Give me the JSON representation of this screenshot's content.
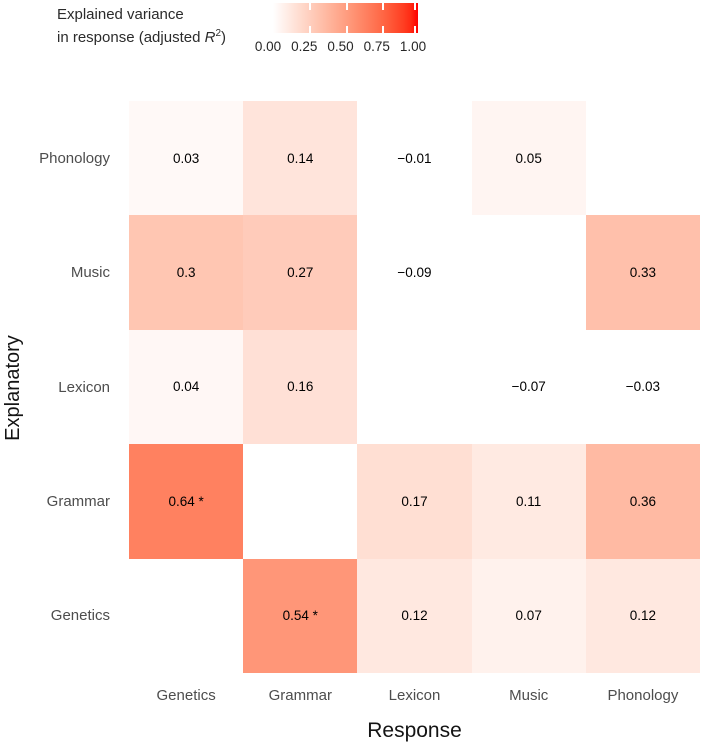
{
  "figure": {
    "background": "#ffffff"
  },
  "legend": {
    "title_line1": "Explained variance",
    "title_line2_prefix": "in response (adjusted ",
    "title_r": "R",
    "title_sup": "2",
    "title_close": ")",
    "tick_labels": [
      "0.00",
      "0.25",
      "0.50",
      "0.75",
      "1.00"
    ]
  },
  "axes": {
    "x_title": "Response",
    "y_title": "Explanatory"
  },
  "chart_data": {
    "type": "heatmap",
    "title": "Explained variance in response (adjusted R²)",
    "xlabel": "Response",
    "ylabel": "Explanatory",
    "x_categories": [
      "Genetics",
      "Grammar",
      "Lexicon",
      "Music",
      "Phonology"
    ],
    "y_categories": [
      "Phonology",
      "Music",
      "Lexicon",
      "Grammar",
      "Genetics"
    ],
    "colorscale": {
      "low": "#FFFFFF",
      "high": "#FF0000",
      "space": "lab",
      "domain": [
        0,
        1
      ]
    },
    "legend_tick_values": [
      0,
      0.25,
      0.5,
      0.75,
      1
    ],
    "rows": [
      {
        "y": "Phonology",
        "values": [
          0.03,
          0.14,
          -0.01,
          0.05,
          null
        ],
        "labels": [
          "0.03",
          "0.14",
          "−0.01",
          "0.05",
          ""
        ]
      },
      {
        "y": "Music",
        "values": [
          0.3,
          0.27,
          -0.09,
          null,
          0.33
        ],
        "labels": [
          "0.3",
          "0.27",
          "−0.09",
          "",
          "0.33"
        ]
      },
      {
        "y": "Lexicon",
        "values": [
          0.04,
          0.16,
          null,
          -0.07,
          -0.03
        ],
        "labels": [
          "0.04",
          "0.16",
          "",
          "−0.07",
          "−0.03"
        ]
      },
      {
        "y": "Grammar",
        "values": [
          0.64,
          null,
          0.17,
          0.11,
          0.36
        ],
        "labels": [
          "0.64 *",
          "",
          "0.17",
          "0.11",
          "0.36"
        ]
      },
      {
        "y": "Genetics",
        "values": [
          null,
          0.54,
          0.12,
          0.07,
          0.12
        ],
        "labels": [
          "",
          "0.54 *",
          "0.12",
          "0.07",
          "0.12"
        ]
      }
    ]
  }
}
